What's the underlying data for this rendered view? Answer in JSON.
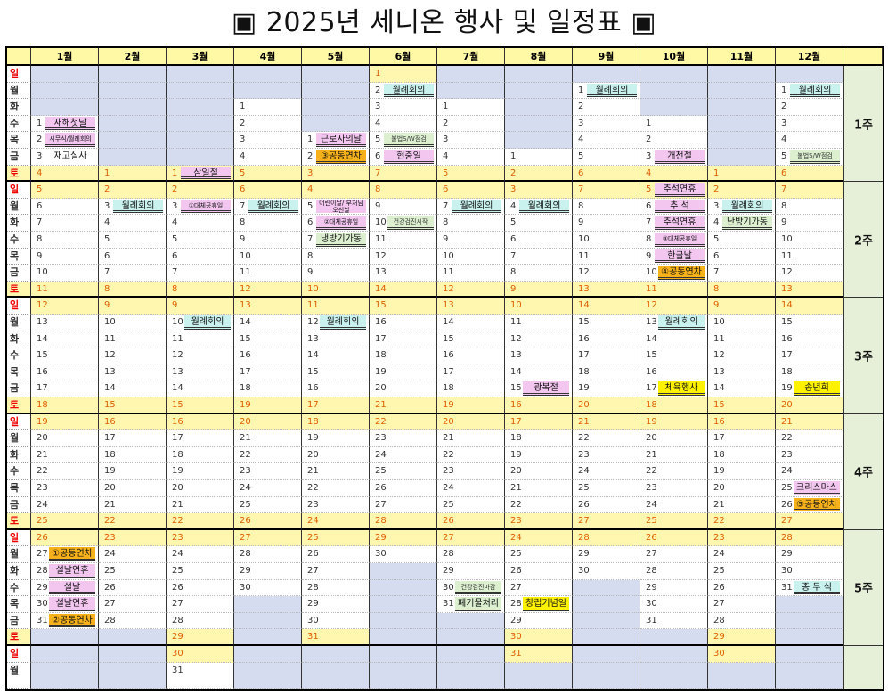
{
  "title": "▣ 2025년 세니온 행사 및 일정표 ▣",
  "colors": {
    "lavender": "#d6dcf0",
    "yellow": "#fff7b0",
    "pink": "#f3c6f0",
    "cyan": "#c9f2ef",
    "orange": "#f7b21b",
    "brightYellow": "#fff200",
    "light": "#dcf0d0",
    "weekGreen": "#e6f0d8"
  },
  "months": [
    "1월",
    "2월",
    "3월",
    "4월",
    "5월",
    "6월",
    "7월",
    "8월",
    "9월",
    "10월",
    "11월",
    "12월"
  ],
  "weekdays": [
    "일",
    "월",
    "화",
    "수",
    "목",
    "금",
    "토",
    "일",
    "월",
    "화",
    "수",
    "목",
    "금",
    "토",
    "일",
    "월",
    "화",
    "수",
    "목",
    "금",
    "토",
    "일",
    "월",
    "화",
    "수",
    "목",
    "금",
    "토",
    "일",
    "월",
    "화",
    "수",
    "목",
    "금",
    "토",
    "일",
    "월"
  ],
  "weekLabels": [
    "1주",
    "2주",
    "3주",
    "4주",
    "5주"
  ],
  "startRow": [
    3,
    6,
    6,
    2,
    4,
    0,
    2,
    5,
    1,
    3,
    6,
    1
  ],
  "monthDays": [
    31,
    28,
    31,
    30,
    31,
    30,
    31,
    31,
    30,
    31,
    30,
    31
  ],
  "events": {
    "0-1": {
      "t": "새해첫날",
      "bg": "pink"
    },
    "0-2": {
      "t": "시무식/월례회의",
      "bg": "pink",
      "f": "sm"
    },
    "0-3": {
      "t": "재고실사",
      "bg": "none",
      "nb": true
    },
    "0-27": {
      "t": "①공동연차",
      "bg": "orange"
    },
    "0-28": {
      "t": "설날연휴",
      "bg": "pink"
    },
    "0-29": {
      "t": "설날",
      "bg": "pink"
    },
    "0-30": {
      "t": "설날연휴",
      "bg": "pink"
    },
    "0-31": {
      "t": "②공동연차",
      "bg": "orange"
    },
    "1-3": {
      "t": "월례회의",
      "bg": "cyan"
    },
    "2-1": {
      "t": "삼일절",
      "bg": "pink"
    },
    "2-3": {
      "t": "①대체공휴일",
      "bg": "pink",
      "f": "sm"
    },
    "2-10": {
      "t": "월례회의",
      "bg": "cyan"
    },
    "3-7": {
      "t": "월례회의",
      "bg": "cyan"
    },
    "4-1": {
      "t": "근로자의날",
      "bg": "pink"
    },
    "4-2": {
      "t": "③공동연차",
      "bg": "orange"
    },
    "4-5": {
      "t": "어린이날/ 부처님오신날",
      "bg": "pink",
      "f": "tw"
    },
    "4-6": {
      "t": "②대체공휴일",
      "bg": "pink",
      "f": "sm"
    },
    "4-7": {
      "t": "냉방기가동",
      "bg": "light"
    },
    "4-12": {
      "t": "월례회의",
      "bg": "cyan"
    },
    "5-2": {
      "t": "월례회의",
      "bg": "cyan"
    },
    "5-5": {
      "t": "불법S/W점검",
      "bg": "light",
      "f": "sm",
      "g": true
    },
    "5-6": {
      "t": "현충일",
      "bg": "pink"
    },
    "5-10": {
      "t": "건강검진시작",
      "bg": "light",
      "f": "sm",
      "g": true
    },
    "6-7": {
      "t": "월례회의",
      "bg": "cyan"
    },
    "6-30": {
      "t": "건강검진마감",
      "bg": "light",
      "f": "sm",
      "g": true
    },
    "6-31": {
      "t": "폐기물처리",
      "bg": "light"
    },
    "7-4": {
      "t": "월례회의",
      "bg": "cyan"
    },
    "7-15": {
      "t": "광복절",
      "bg": "pink"
    },
    "7-28": {
      "t": "창립기념일",
      "bg": "brightYellow"
    },
    "8-1": {
      "t": "월례회의",
      "bg": "cyan"
    },
    "9-3": {
      "t": "개천절",
      "bg": "pink"
    },
    "9-5": {
      "t": "추석연휴",
      "bg": "pink"
    },
    "9-6": {
      "t": "추 석",
      "bg": "pink"
    },
    "9-7": {
      "t": "추석연휴",
      "bg": "pink"
    },
    "9-8": {
      "t": "③대체공휴일",
      "bg": "pink",
      "f": "sm"
    },
    "9-9": {
      "t": "한글날",
      "bg": "pink"
    },
    "9-10": {
      "t": "④공동연차",
      "bg": "orange"
    },
    "9-13": {
      "t": "월례회의",
      "bg": "cyan"
    },
    "9-17": {
      "t": "체육행사",
      "bg": "brightYellow"
    },
    "10-3": {
      "t": "월례회의",
      "bg": "cyan"
    },
    "10-4": {
      "t": "난방기가동",
      "bg": "light"
    },
    "11-1": {
      "t": "월례회의",
      "bg": "cyan"
    },
    "11-5": {
      "t": "불법S/W점검",
      "bg": "light",
      "f": "sm",
      "g": true
    },
    "11-19": {
      "t": "송년회",
      "bg": "brightYellow"
    },
    "11-25": {
      "t": "크리스마스",
      "bg": "pink"
    },
    "11-26": {
      "t": "⑤공동연차",
      "bg": "orange"
    },
    "11-31": {
      "t": "종 무 식",
      "bg": "cyan"
    }
  }
}
